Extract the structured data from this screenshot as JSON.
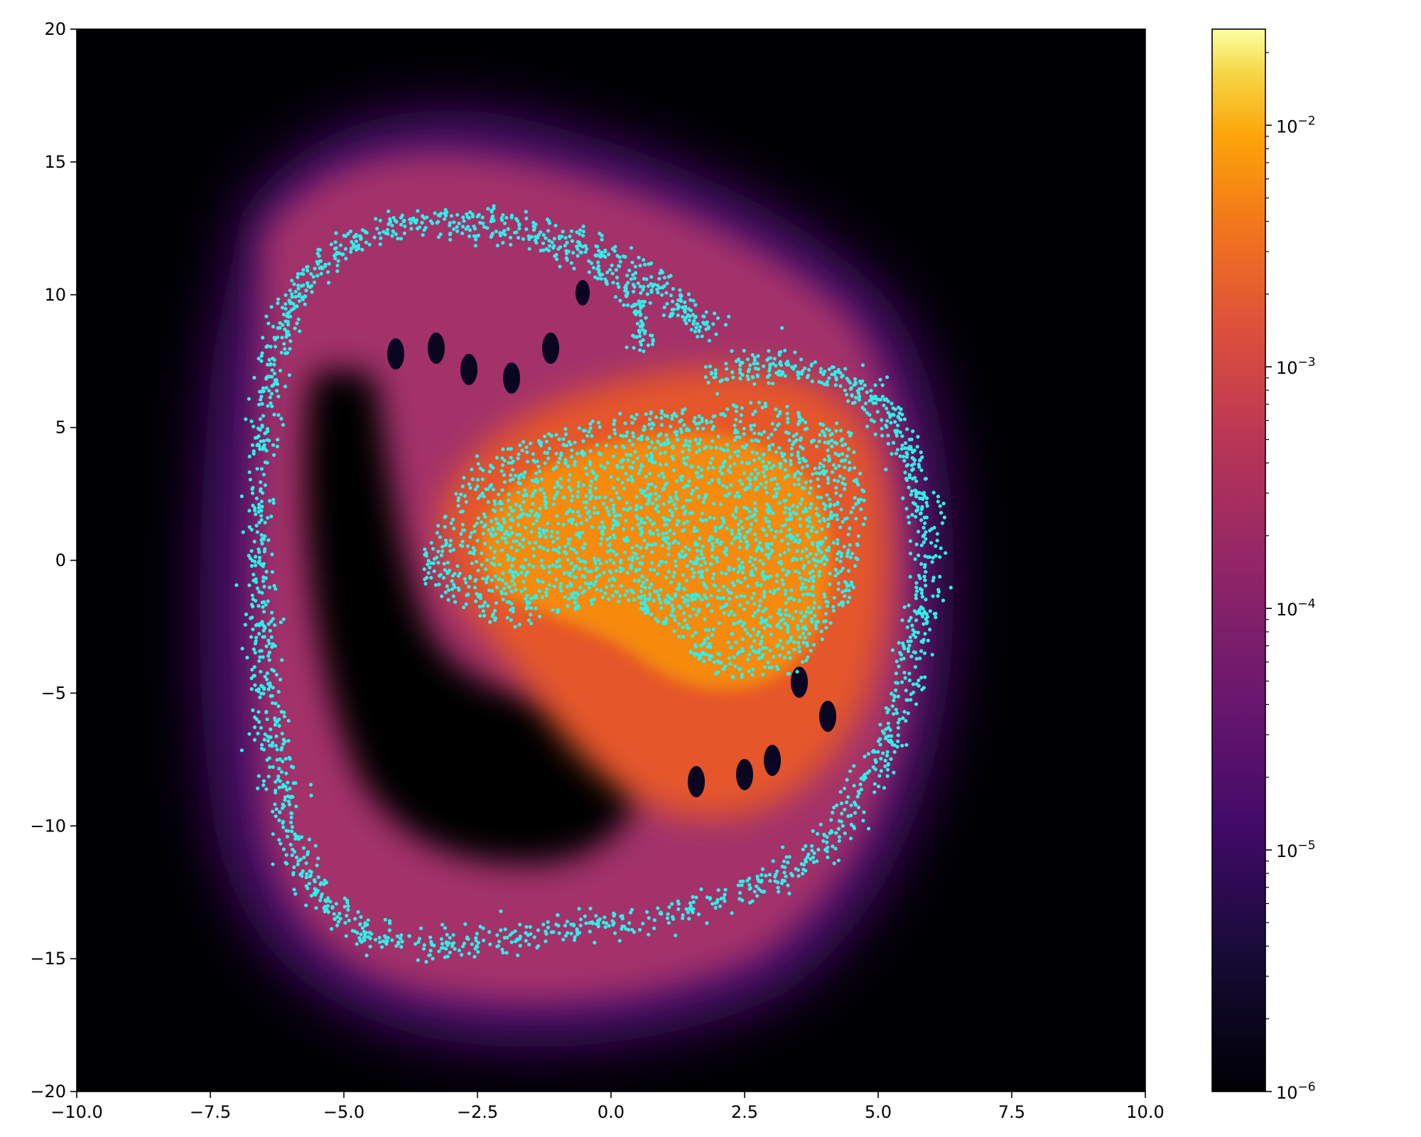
{
  "chart_data": [
    {
      "type": "heatmap",
      "subtype": "density heatmap with scatter overlay",
      "title": "",
      "xlabel": "",
      "ylabel": "",
      "xlim": [
        -10,
        10
      ],
      "ylim": [
        -20,
        20
      ],
      "x_ticks": [
        -10.0,
        -7.5,
        -5.0,
        -2.5,
        0.0,
        2.5,
        5.0,
        7.5,
        10.0
      ],
      "x_tick_labels": [
        "−10.0",
        "−7.5",
        "−5.0",
        "−2.5",
        "0.0",
        "2.5",
        "5.0",
        "7.5",
        "10.0"
      ],
      "y_ticks": [
        20,
        15,
        10,
        5,
        0,
        -5,
        -10,
        -15,
        -20
      ],
      "y_tick_labels": [
        "20",
        "15",
        "10",
        "5",
        "0",
        "−5",
        "−10",
        "−15",
        "−20"
      ],
      "grid": false,
      "colormap": "inferno",
      "background_color": "#000004",
      "scatter": {
        "color": "#2ff0ea",
        "outer_ring": [
          [
            -6.6,
            -1.0
          ],
          [
            -6.6,
            2.0
          ],
          [
            -6.5,
            5.0
          ],
          [
            -6.3,
            7.5
          ],
          [
            -6.0,
            9.5
          ],
          [
            -5.5,
            11.0
          ],
          [
            -4.7,
            12.2
          ],
          [
            -3.5,
            12.8
          ],
          [
            -2.0,
            12.8
          ],
          [
            -0.5,
            12.0
          ],
          [
            0.6,
            10.8
          ],
          [
            1.3,
            9.5
          ],
          [
            1.8,
            8.6
          ]
        ],
        "inner_arm": [
          [
            -3.3,
            12.4
          ],
          [
            -1.8,
            12.1
          ],
          [
            -0.6,
            11.3
          ],
          [
            0.3,
            10.2
          ],
          [
            0.6,
            9.2
          ],
          [
            0.6,
            8.0
          ]
        ],
        "right_ring": [
          [
            1.8,
            7.0
          ],
          [
            3.0,
            7.3
          ],
          [
            4.2,
            7.0
          ],
          [
            5.0,
            6.0
          ],
          [
            5.5,
            4.5
          ],
          [
            5.8,
            2.5
          ],
          [
            5.9,
            0.0
          ],
          [
            5.8,
            -2.5
          ],
          [
            5.5,
            -5.0
          ],
          [
            5.0,
            -7.5
          ],
          [
            4.3,
            -10.0
          ],
          [
            3.3,
            -11.8
          ],
          [
            1.8,
            -13.0
          ],
          [
            0.0,
            -13.7
          ],
          [
            -1.5,
            -14.1
          ],
          [
            -3.0,
            -14.5
          ],
          [
            -4.5,
            -14.3
          ],
          [
            -5.3,
            -13.0
          ],
          [
            -5.9,
            -11.0
          ],
          [
            -6.2,
            -8.5
          ],
          [
            -6.4,
            -6.0
          ],
          [
            -6.5,
            -3.5
          ],
          [
            -6.6,
            -1.0
          ]
        ],
        "core_region": [
          [
            -3.5,
            0.5
          ],
          [
            -2.5,
            4.0
          ],
          [
            0.0,
            5.5
          ],
          [
            3.0,
            6.0
          ],
          [
            4.5,
            5.0
          ],
          [
            4.8,
            2.0
          ],
          [
            4.5,
            -1.5
          ],
          [
            3.5,
            -4.3
          ],
          [
            2.0,
            -4.5
          ],
          [
            1.0,
            -2.5
          ],
          [
            0.0,
            -1.5
          ],
          [
            -2.0,
            -2.7
          ],
          [
            -3.5,
            -1.0
          ]
        ]
      }
    },
    {
      "type": "colorbar",
      "scale": "log",
      "range": [
        1e-06,
        0.025
      ],
      "ticks": [
        1e-06,
        1e-05,
        0.0001,
        0.001,
        0.01
      ],
      "tick_labels": [
        {
          "base": "10",
          "exp": "−6"
        },
        {
          "base": "10",
          "exp": "−5"
        },
        {
          "base": "10",
          "exp": "−4"
        },
        {
          "base": "10",
          "exp": "−3"
        },
        {
          "base": "10",
          "exp": "−2"
        }
      ],
      "colormap": "inferno"
    }
  ]
}
